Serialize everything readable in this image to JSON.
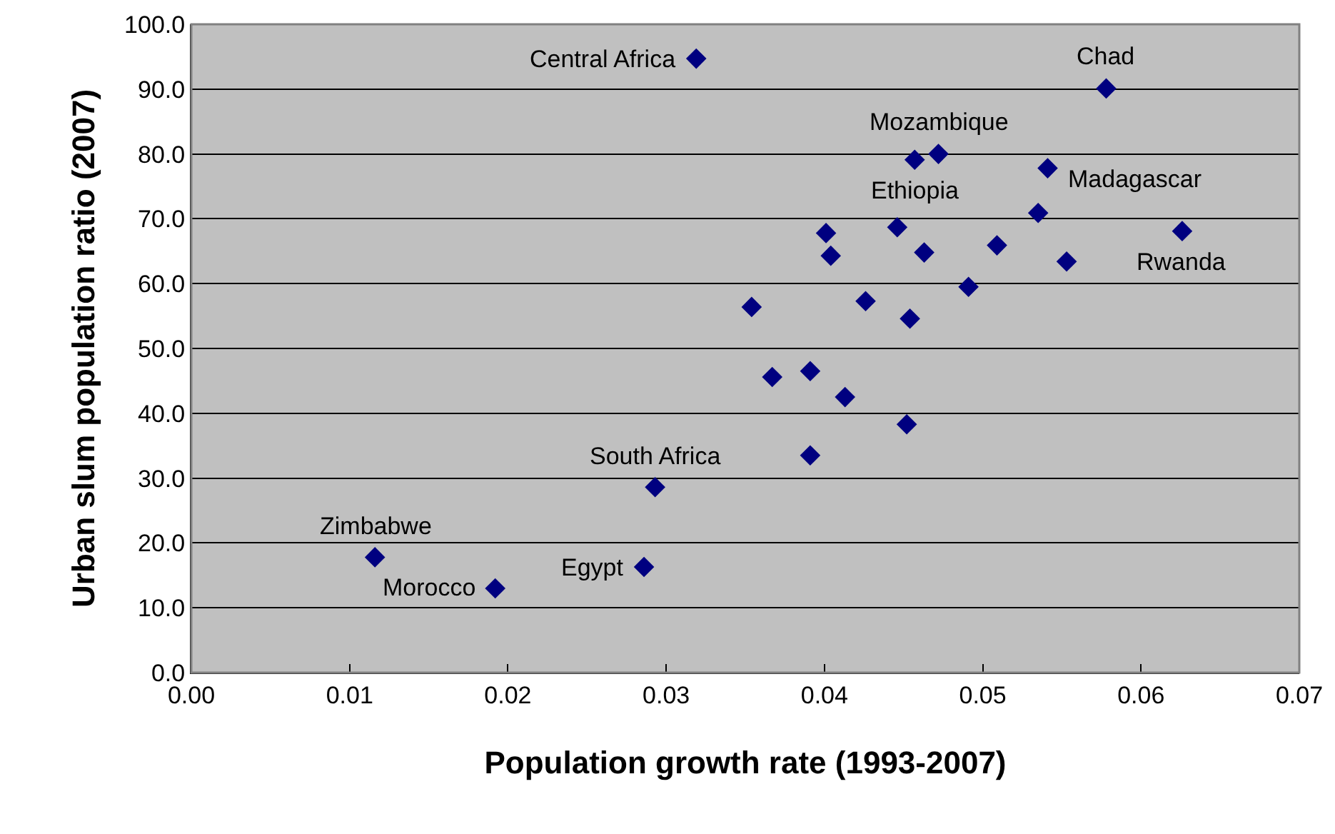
{
  "chart_data": {
    "type": "scatter",
    "xlabel": "Population growth rate (1993-2007)",
    "ylabel": "Urban slum population ratio (2007)",
    "x": [
      0.0319,
      0.0578,
      0.0472,
      0.0457,
      0.0541,
      0.0535,
      0.0401,
      0.0446,
      0.0626,
      0.0404,
      0.0463,
      0.0509,
      0.0553,
      0.0491,
      0.0354,
      0.0426,
      0.0454,
      0.0367,
      0.0391,
      0.0413,
      0.0452,
      0.0391,
      0.0293,
      0.0116,
      0.0192,
      0.0286
    ],
    "series": [
      {
        "color": "#000080",
        "values": [
          94.7,
          90.1,
          80.0,
          79.1,
          77.8,
          70.9,
          67.8,
          68.7,
          68.1,
          64.3,
          64.8,
          65.9,
          63.4,
          59.5,
          56.4,
          57.3,
          54.6,
          45.6,
          46.5,
          42.5,
          38.3,
          33.5,
          28.6,
          17.8,
          13.0,
          16.3
        ]
      }
    ],
    "xlim": [
      0,
      0.07
    ],
    "xticks": [
      {
        "value": 0,
        "label": "0.00"
      },
      {
        "value": 0.01,
        "label": "0.01"
      },
      {
        "value": 0.02,
        "label": "0.02"
      },
      {
        "value": 0.03,
        "label": "0.03"
      },
      {
        "value": 0.04,
        "label": "0.04"
      },
      {
        "value": 0.05,
        "label": "0.05"
      },
      {
        "value": 0.06,
        "label": "0.06"
      },
      {
        "value": 0.07,
        "label": "0.07"
      }
    ],
    "ylim": [
      0,
      100
    ],
    "yticks": [
      {
        "value": 0,
        "label": "0.0"
      },
      {
        "value": 10,
        "label": "10.0"
      },
      {
        "value": 20,
        "label": "20.0"
      },
      {
        "value": 30,
        "label": "30.0"
      },
      {
        "value": 40,
        "label": "40.0"
      },
      {
        "value": 50,
        "label": "50.0"
      },
      {
        "value": 60,
        "label": "60.0"
      },
      {
        "value": 70,
        "label": "70.0"
      },
      {
        "value": 80,
        "label": "80.0"
      },
      {
        "value": 90,
        "label": "90.0"
      },
      {
        "value": 100,
        "label": "100.0"
      }
    ],
    "grid": "y",
    "marker": "diamond",
    "annotations": [
      {
        "text": "Central Africa",
        "x": 0.0319,
        "y": 94.7
      },
      {
        "text": "Chad",
        "x": 0.0578,
        "y": 90.1
      },
      {
        "text": "Mozambique",
        "x": 0.0472,
        "y": 80.0
      },
      {
        "text": "Ethiopia",
        "x": 0.0457,
        "y": 79.1
      },
      {
        "text": "Madagascar",
        "x": 0.0541,
        "y": 77.8
      },
      {
        "text": "Rwanda",
        "x": 0.0626,
        "y": 68.1
      },
      {
        "text": "South Africa",
        "x": 0.0293,
        "y": 28.6
      },
      {
        "text": "Zimbabwe",
        "x": 0.0116,
        "y": 17.8
      },
      {
        "text": "Morocco",
        "x": 0.0192,
        "y": 13.0
      },
      {
        "text": "Egypt",
        "x": 0.0286,
        "y": 16.3
      }
    ]
  }
}
